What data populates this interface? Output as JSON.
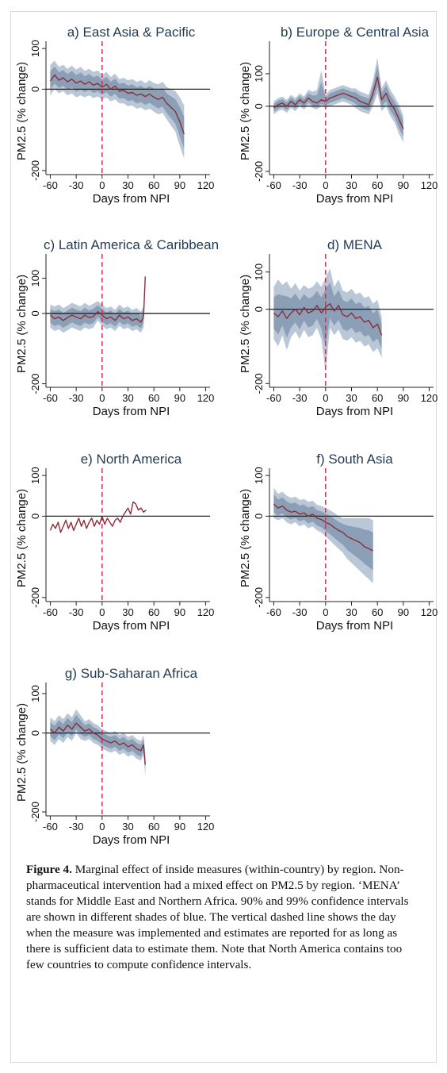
{
  "chart_data": [
    {
      "type": "line",
      "title": "a) East Asia & Pacific",
      "xlabel": "Days from NPI",
      "ylabel": "PM2.5 (% change)",
      "xticks": [
        "-60",
        "-30",
        "0",
        "30",
        "60",
        "90",
        "120"
      ],
      "yticks": [
        "100",
        "0",
        "-200"
      ],
      "xlim": [
        -65,
        125
      ],
      "ylim": [
        -210,
        110
      ],
      "series": [
        {
          "x": [
            -60,
            -55,
            -50,
            -45,
            -40,
            -35,
            -30,
            -25,
            -20,
            -15,
            -10,
            -5,
            0,
            5,
            10,
            15,
            20,
            25,
            30,
            35,
            40,
            45,
            50,
            55,
            60,
            65,
            70,
            75,
            80,
            85,
            90,
            95
          ],
          "y": [
            20,
            35,
            22,
            28,
            18,
            25,
            15,
            20,
            12,
            18,
            10,
            14,
            5,
            12,
            0,
            8,
            -5,
            -3,
            -10,
            -8,
            -15,
            -12,
            -18,
            -12,
            -20,
            -25,
            -20,
            -35,
            -45,
            -55,
            -80,
            -110
          ],
          "low": [
            -15,
            0,
            -10,
            -5,
            -15,
            -10,
            -20,
            -15,
            -20,
            -15,
            -22,
            -18,
            -25,
            -20,
            -30,
            -25,
            -35,
            -35,
            -42,
            -40,
            -48,
            -45,
            -52,
            -48,
            -55,
            -62,
            -58,
            -75,
            -90,
            -105,
            -140,
            -170
          ],
          "high": [
            60,
            70,
            55,
            60,
            50,
            58,
            48,
            55,
            45,
            50,
            42,
            46,
            35,
            42,
            30,
            38,
            25,
            28,
            22,
            25,
            18,
            22,
            15,
            22,
            15,
            12,
            18,
            5,
            0,
            -5,
            -20,
            -40
          ]
        }
      ],
      "vline_x": 0,
      "hline_y": 0
    },
    {
      "type": "line",
      "title": "b) Europe & Central Asia",
      "xlabel": "Days from NPI",
      "ylabel": "PM2.5 (% change)",
      "xticks": [
        "-60",
        "-30",
        "0",
        "30",
        "60",
        "90",
        "120"
      ],
      "yticks": [
        "100",
        "0",
        "-200"
      ],
      "xlim": [
        -65,
        125
      ],
      "ylim": [
        -210,
        190
      ],
      "series": [
        {
          "x": [
            -60,
            -55,
            -50,
            -45,
            -40,
            -35,
            -30,
            -25,
            -20,
            -15,
            -10,
            -5,
            0,
            5,
            10,
            15,
            20,
            25,
            30,
            35,
            40,
            45,
            50,
            55,
            60,
            65,
            70,
            75,
            80,
            85,
            90
          ],
          "y": [
            -5,
            5,
            10,
            0,
            15,
            5,
            20,
            10,
            25,
            15,
            10,
            20,
            15,
            25,
            30,
            35,
            40,
            35,
            30,
            25,
            15,
            10,
            5,
            40,
            90,
            20,
            40,
            10,
            -10,
            -40,
            -70
          ],
          "low": [
            -25,
            -15,
            -10,
            -20,
            -5,
            -15,
            0,
            -10,
            5,
            -5,
            -10,
            0,
            -5,
            0,
            5,
            10,
            15,
            10,
            5,
            -5,
            -15,
            -20,
            -25,
            0,
            40,
            -15,
            0,
            -30,
            -50,
            -85,
            -110
          ],
          "high": [
            15,
            25,
            30,
            20,
            35,
            25,
            40,
            30,
            50,
            45,
            50,
            110,
            35,
            50,
            55,
            60,
            65,
            60,
            55,
            55,
            45,
            40,
            35,
            80,
            150,
            55,
            80,
            50,
            30,
            5,
            -30
          ]
        }
      ],
      "vline_x": 0,
      "hline_y": 0
    },
    {
      "type": "line",
      "title": "c) Latin America & Caribbean",
      "xlabel": "Days from NPI",
      "ylabel": "PM2.5 (% change)",
      "xticks": [
        "-60",
        "-30",
        "0",
        "30",
        "60",
        "90",
        "120"
      ],
      "yticks": [
        "100",
        "0",
        "-200"
      ],
      "xlim": [
        -65,
        125
      ],
      "ylim": [
        -210,
        160
      ],
      "series": [
        {
          "x": [
            -60,
            -55,
            -50,
            -45,
            -40,
            -35,
            -30,
            -25,
            -20,
            -15,
            -10,
            -5,
            0,
            5,
            10,
            15,
            20,
            25,
            30,
            35,
            40,
            45,
            48,
            50
          ],
          "y": [
            -5,
            -15,
            -10,
            -20,
            -12,
            -5,
            -10,
            -15,
            -5,
            -12,
            -8,
            5,
            -5,
            -15,
            -10,
            -20,
            -5,
            -15,
            -10,
            -20,
            -15,
            -25,
            -10,
            105
          ],
          "low": [
            -40,
            -50,
            -45,
            -55,
            -48,
            -40,
            -45,
            -50,
            -40,
            -45,
            -40,
            -20,
            -35,
            -45,
            -40,
            -50,
            -35,
            -45,
            -40,
            -50,
            -45,
            -55,
            -40,
            90
          ],
          "high": [
            25,
            20,
            25,
            15,
            22,
            30,
            25,
            20,
            30,
            22,
            28,
            35,
            25,
            15,
            20,
            10,
            25,
            15,
            20,
            10,
            15,
            5,
            20,
            110
          ]
        }
      ],
      "vline_x": 0,
      "hline_y": 0
    },
    {
      "type": "line",
      "title": "d) MENA",
      "xlabel": "Days from NPI",
      "ylabel": "PM2.5 (% change)",
      "xticks": [
        "-60",
        "-30",
        "0",
        "30",
        "60",
        "90",
        "120"
      ],
      "yticks": [
        "100",
        "0",
        "-200"
      ],
      "xlim": [
        -65,
        125
      ],
      "ylim": [
        -210,
        140
      ],
      "series": [
        {
          "x": [
            -60,
            -55,
            -50,
            -45,
            -40,
            -35,
            -30,
            -25,
            -20,
            -15,
            -10,
            -5,
            0,
            5,
            10,
            15,
            20,
            25,
            30,
            35,
            40,
            45,
            50,
            55,
            60,
            65
          ],
          "y": [
            -10,
            -20,
            -5,
            -25,
            -10,
            0,
            -15,
            5,
            -10,
            -5,
            10,
            -10,
            5,
            15,
            -5,
            10,
            -15,
            -20,
            -10,
            -25,
            -20,
            -35,
            -30,
            -50,
            -40,
            -70
          ],
          "low": [
            -80,
            -100,
            -70,
            -110,
            -75,
            -60,
            -80,
            -55,
            -75,
            -70,
            -50,
            -80,
            -170,
            -50,
            -70,
            -55,
            -80,
            -85,
            -75,
            -90,
            -85,
            -100,
            -95,
            -115,
            -105,
            -130
          ],
          "high": [
            60,
            80,
            65,
            75,
            55,
            70,
            50,
            65,
            55,
            60,
            75,
            60,
            85,
            110,
            60,
            80,
            50,
            45,
            55,
            40,
            45,
            30,
            35,
            15,
            25,
            -20
          ]
        }
      ],
      "vline_x": 0,
      "hline_y": 0
    },
    {
      "type": "line",
      "title": "e) North America",
      "xlabel": "Days from NPI",
      "ylabel": "PM2.5 (% change)",
      "xticks": [
        "-60",
        "-30",
        "0",
        "30",
        "60",
        "90",
        "120"
      ],
      "yticks": [
        "100",
        "0",
        "-200"
      ],
      "xlim": [
        -65,
        125
      ],
      "ylim": [
        -210,
        110
      ],
      "series": [
        {
          "x": [
            -60,
            -57,
            -54,
            -51,
            -48,
            -45,
            -42,
            -39,
            -36,
            -33,
            -30,
            -27,
            -24,
            -21,
            -18,
            -15,
            -12,
            -9,
            -6,
            -3,
            0,
            3,
            6,
            9,
            12,
            15,
            18,
            21,
            24,
            27,
            30,
            33,
            36,
            39,
            42,
            45,
            48,
            51
          ],
          "y": [
            -35,
            -20,
            -30,
            -15,
            -40,
            -25,
            -10,
            -30,
            -15,
            -35,
            -20,
            -5,
            -25,
            -10,
            -30,
            -15,
            -5,
            -25,
            -10,
            -20,
            0,
            -20,
            -5,
            -15,
            -25,
            -10,
            -5,
            -15,
            0,
            10,
            20,
            5,
            35,
            30,
            15,
            20,
            10,
            15
          ]
        }
      ],
      "vline_x": 0,
      "hline_y": 0
    },
    {
      "type": "line",
      "title": "f) South Asia",
      "xlabel": "Days from NPI",
      "ylabel": "PM2.5 (% change)",
      "xticks": [
        "-60",
        "-30",
        "0",
        "30",
        "60",
        "90",
        "120"
      ],
      "yticks": [
        "100",
        "0",
        "-200"
      ],
      "xlim": [
        -65,
        125
      ],
      "ylim": [
        -210,
        110
      ],
      "series": [
        {
          "x": [
            -60,
            -55,
            -50,
            -45,
            -40,
            -35,
            -30,
            -25,
            -20,
            -15,
            -10,
            -5,
            0,
            5,
            10,
            15,
            20,
            25,
            30,
            35,
            40,
            45,
            50,
            55
          ],
          "y": [
            30,
            20,
            25,
            15,
            10,
            12,
            5,
            8,
            0,
            5,
            -5,
            -8,
            -15,
            -20,
            -28,
            -35,
            -40,
            -50,
            -55,
            -60,
            -65,
            -75,
            -80,
            -85
          ],
          "low": [
            -5,
            -10,
            -5,
            -15,
            -20,
            -15,
            -25,
            -20,
            -30,
            -25,
            -35,
            -40,
            -50,
            -60,
            -70,
            -80,
            -90,
            -105,
            -115,
            -125,
            -135,
            -145,
            -155,
            -165
          ],
          "high": [
            70,
            55,
            60,
            50,
            45,
            48,
            40,
            42,
            35,
            38,
            28,
            25,
            20,
            15,
            8,
            0,
            -5,
            -5,
            -5,
            -5,
            -5,
            -5,
            -5,
            -10
          ]
        }
      ],
      "vline_x": 0,
      "hline_y": 0
    },
    {
      "type": "line",
      "title": "g) Sub-Saharan Africa",
      "xlabel": "Days from NPI",
      "ylabel": "PM2.5 (% change)",
      "xticks": [
        "-60",
        "-30",
        "0",
        "30",
        "60",
        "90",
        "120"
      ],
      "yticks": [
        "100",
        "0",
        "-200"
      ],
      "xlim": [
        -65,
        125
      ],
      "ylim": [
        -210,
        120
      ],
      "series": [
        {
          "x": [
            -60,
            -55,
            -50,
            -45,
            -40,
            -35,
            -30,
            -25,
            -20,
            -15,
            -10,
            -5,
            0,
            5,
            10,
            15,
            20,
            25,
            30,
            35,
            40,
            45,
            48,
            50
          ],
          "y": [
            10,
            0,
            15,
            5,
            20,
            10,
            25,
            15,
            5,
            10,
            0,
            -5,
            -15,
            -20,
            -25,
            -20,
            -30,
            -25,
            -35,
            -30,
            -40,
            -45,
            -30,
            -80
          ],
          "low": [
            -20,
            -30,
            -15,
            -25,
            -10,
            -20,
            0,
            -15,
            -20,
            -15,
            -25,
            -30,
            -40,
            -45,
            -50,
            -45,
            -55,
            -50,
            -60,
            -55,
            -65,
            -70,
            -55,
            -110
          ],
          "high": [
            40,
            30,
            45,
            35,
            50,
            40,
            60,
            45,
            30,
            35,
            25,
            20,
            10,
            5,
            0,
            5,
            -5,
            0,
            -10,
            -5,
            -15,
            -20,
            -5,
            -50
          ]
        }
      ],
      "vline_x": 0,
      "hline_y": 0
    }
  ],
  "caption": {
    "label": "Figure 4.",
    "text": " Marginal effect of inside measures (within-country) by region. Non-pharmaceutical intervention had a mixed effect on PM2.5 by region. ‘MENA’ stands for Middle East and Northern Africa. 90% and 99% confidence intervals are shown in different shades of blue. The vertical dashed line shows the day when the measure was implemented and estimates are reported for as long as there is sufficient data to estimate them. Note that North America contains too few countries to compute confidence intervals."
  },
  "colors": {
    "band_outer": "#b9c7d6",
    "band_inner": "#8299b1",
    "line": "#8b2e3a",
    "vline": "#c8325a",
    "title": "#1f3b57"
  }
}
